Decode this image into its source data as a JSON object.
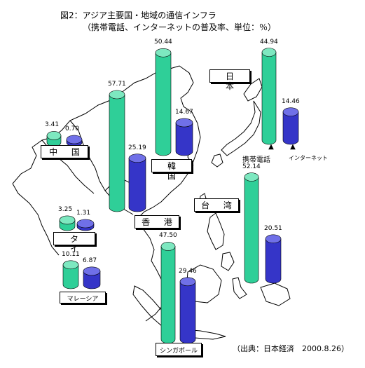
{
  "page": {
    "title": "図2：アジア主要国・地域の通信インフラ",
    "subtitle": "（携帯電話、インターネットの普及率、単位：％）",
    "source": "（出典：日本経済　2000.8.26）"
  },
  "colors": {
    "mobile": "#2fcf98",
    "mobile_top": "#7de8c0",
    "internet": "#3535c8",
    "internet_top": "#7070e8",
    "map_line": "#000000"
  },
  "chart_data": {
    "type": "bar",
    "title": "図2：アジア主要国・地域の通信インフラ",
    "subtitle": "（携帯電話、インターネットの普及率、単位：％）",
    "ylabel": "単位：％",
    "categories": [
      "日本",
      "韓国",
      "中国",
      "香港",
      "タイ",
      "台湾",
      "マレーシア",
      "シンガポール"
    ],
    "series": [
      {
        "name": "携帯電話",
        "values": [
          44.94,
          50.44,
          3.41,
          57.71,
          3.25,
          52.14,
          10.11,
          47.5
        ],
        "labels": [
          "44.94",
          "50.44",
          "3.41",
          "57.71",
          "3.25",
          "52.14",
          "10.11",
          "47.50"
        ]
      },
      {
        "name": "インターネット",
        "values": [
          14.46,
          14.67,
          0.7,
          25.19,
          1.31,
          20.51,
          6.87,
          29.46
        ],
        "labels": [
          "14.46",
          "14.67",
          "0.70",
          "25.19",
          "1.31",
          "20.51",
          "6.87",
          "29.46"
        ]
      }
    ],
    "legend": {
      "mobile": "携帯電話",
      "internet": "インターネット",
      "marker": "▲"
    },
    "country_labels": {
      "japan": "日 本",
      "korea": "韓 国",
      "china": "中 国",
      "hongkong": "香 港",
      "thailand": "タ イ",
      "taiwan": "台 湾",
      "malaysia": "マレーシア",
      "singapore": "シンガポール"
    }
  }
}
